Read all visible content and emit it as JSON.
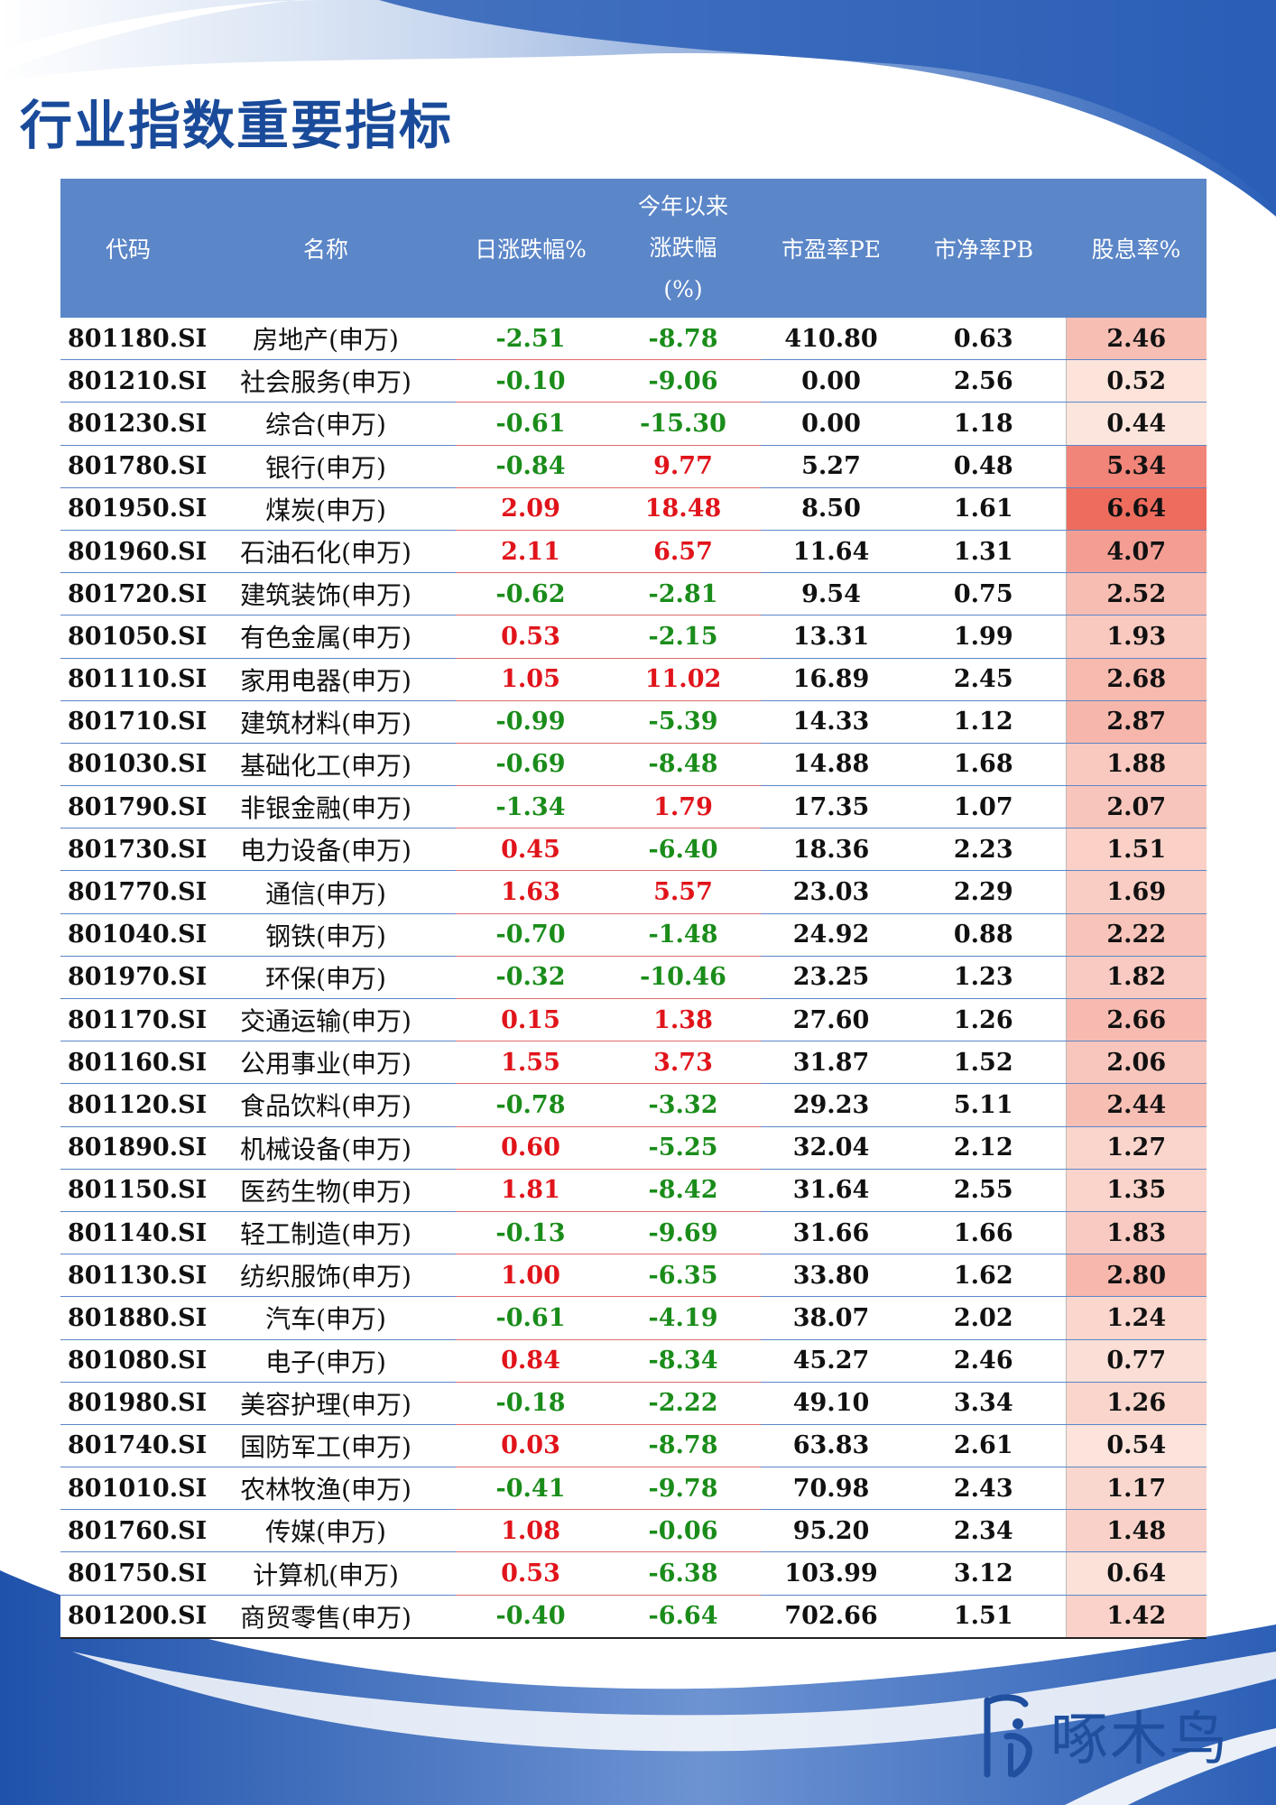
{
  "page": {
    "title": "行业指数重要指标"
  },
  "table": {
    "headers": {
      "code": "代码",
      "name": "名称",
      "day_change": "日涨跌幅%",
      "ytd_group": "今年以来",
      "ytd_label": "涨跌幅",
      "ytd_unit": "(%)",
      "pe": "市盈率PE",
      "pb": "市净率PB",
      "dividend": "股息率%"
    },
    "colors": {
      "header_bg": "#5b86c8",
      "positive": "#e0141a",
      "negative": "#1a8c1a",
      "dividend_low": "#fdeee6",
      "dividend_high": "#ee6c5e"
    },
    "rows": [
      {
        "code": "801180.SI",
        "name": "房地产(申万)",
        "day": "-2.51",
        "ytd": "-8.78",
        "pe": "410.80",
        "pb": "0.63",
        "div": "2.46"
      },
      {
        "code": "801210.SI",
        "name": "社会服务(申万)",
        "day": "-0.10",
        "ytd": "-9.06",
        "pe": "0.00",
        "pb": "2.56",
        "div": "0.52"
      },
      {
        "code": "801230.SI",
        "name": "综合(申万)",
        "day": "-0.61",
        "ytd": "-15.30",
        "pe": "0.00",
        "pb": "1.18",
        "div": "0.44"
      },
      {
        "code": "801780.SI",
        "name": "银行(申万)",
        "day": "-0.84",
        "ytd": "9.77",
        "pe": "5.27",
        "pb": "0.48",
        "div": "5.34"
      },
      {
        "code": "801950.SI",
        "name": "煤炭(申万)",
        "day": "2.09",
        "ytd": "18.48",
        "pe": "8.50",
        "pb": "1.61",
        "div": "6.64"
      },
      {
        "code": "801960.SI",
        "name": "石油石化(申万)",
        "day": "2.11",
        "ytd": "6.57",
        "pe": "11.64",
        "pb": "1.31",
        "div": "4.07"
      },
      {
        "code": "801720.SI",
        "name": "建筑装饰(申万)",
        "day": "-0.62",
        "ytd": "-2.81",
        "pe": "9.54",
        "pb": "0.75",
        "div": "2.52"
      },
      {
        "code": "801050.SI",
        "name": "有色金属(申万)",
        "day": "0.53",
        "ytd": "-2.15",
        "pe": "13.31",
        "pb": "1.99",
        "div": "1.93"
      },
      {
        "code": "801110.SI",
        "name": "家用电器(申万)",
        "day": "1.05",
        "ytd": "11.02",
        "pe": "16.89",
        "pb": "2.45",
        "div": "2.68"
      },
      {
        "code": "801710.SI",
        "name": "建筑材料(申万)",
        "day": "-0.99",
        "ytd": "-5.39",
        "pe": "14.33",
        "pb": "1.12",
        "div": "2.87"
      },
      {
        "code": "801030.SI",
        "name": "基础化工(申万)",
        "day": "-0.69",
        "ytd": "-8.48",
        "pe": "14.88",
        "pb": "1.68",
        "div": "1.88"
      },
      {
        "code": "801790.SI",
        "name": "非银金融(申万)",
        "day": "-1.34",
        "ytd": "1.79",
        "pe": "17.35",
        "pb": "1.07",
        "div": "2.07"
      },
      {
        "code": "801730.SI",
        "name": "电力设备(申万)",
        "day": "0.45",
        "ytd": "-6.40",
        "pe": "18.36",
        "pb": "2.23",
        "div": "1.51"
      },
      {
        "code": "801770.SI",
        "name": "通信(申万)",
        "day": "1.63",
        "ytd": "5.57",
        "pe": "23.03",
        "pb": "2.29",
        "div": "1.69"
      },
      {
        "code": "801040.SI",
        "name": "钢铁(申万)",
        "day": "-0.70",
        "ytd": "-1.48",
        "pe": "24.92",
        "pb": "0.88",
        "div": "2.22"
      },
      {
        "code": "801970.SI",
        "name": "环保(申万)",
        "day": "-0.32",
        "ytd": "-10.46",
        "pe": "23.25",
        "pb": "1.23",
        "div": "1.82"
      },
      {
        "code": "801170.SI",
        "name": "交通运输(申万)",
        "day": "0.15",
        "ytd": "1.38",
        "pe": "27.60",
        "pb": "1.26",
        "div": "2.66"
      },
      {
        "code": "801160.SI",
        "name": "公用事业(申万)",
        "day": "1.55",
        "ytd": "3.73",
        "pe": "31.87",
        "pb": "1.52",
        "div": "2.06"
      },
      {
        "code": "801120.SI",
        "name": "食品饮料(申万)",
        "day": "-0.78",
        "ytd": "-3.32",
        "pe": "29.23",
        "pb": "5.11",
        "div": "2.44"
      },
      {
        "code": "801890.SI",
        "name": "机械设备(申万)",
        "day": "0.60",
        "ytd": "-5.25",
        "pe": "32.04",
        "pb": "2.12",
        "div": "1.27"
      },
      {
        "code": "801150.SI",
        "name": "医药生物(申万)",
        "day": "1.81",
        "ytd": "-8.42",
        "pe": "31.64",
        "pb": "2.55",
        "div": "1.35"
      },
      {
        "code": "801140.SI",
        "name": "轻工制造(申万)",
        "day": "-0.13",
        "ytd": "-9.69",
        "pe": "31.66",
        "pb": "1.66",
        "div": "1.83"
      },
      {
        "code": "801130.SI",
        "name": "纺织服饰(申万)",
        "day": "1.00",
        "ytd": "-6.35",
        "pe": "33.80",
        "pb": "1.62",
        "div": "2.80"
      },
      {
        "code": "801880.SI",
        "name": "汽车(申万)",
        "day": "-0.61",
        "ytd": "-4.19",
        "pe": "38.07",
        "pb": "2.02",
        "div": "1.24"
      },
      {
        "code": "801080.SI",
        "name": "电子(申万)",
        "day": "0.84",
        "ytd": "-8.34",
        "pe": "45.27",
        "pb": "2.46",
        "div": "0.77"
      },
      {
        "code": "801980.SI",
        "name": "美容护理(申万)",
        "day": "-0.18",
        "ytd": "-2.22",
        "pe": "49.10",
        "pb": "3.34",
        "div": "1.26"
      },
      {
        "code": "801740.SI",
        "name": "国防军工(申万)",
        "day": "0.03",
        "ytd": "-8.78",
        "pe": "63.83",
        "pb": "2.61",
        "div": "0.54"
      },
      {
        "code": "801010.SI",
        "name": "农林牧渔(申万)",
        "day": "-0.41",
        "ytd": "-9.78",
        "pe": "70.98",
        "pb": "2.43",
        "div": "1.17"
      },
      {
        "code": "801760.SI",
        "name": "传媒(申万)",
        "day": "1.08",
        "ytd": "-0.06",
        "pe": "95.20",
        "pb": "2.34",
        "div": "1.48"
      },
      {
        "code": "801750.SI",
        "name": "计算机(申万)",
        "day": "0.53",
        "ytd": "-6.38",
        "pe": "103.99",
        "pb": "3.12",
        "div": "0.64"
      },
      {
        "code": "801200.SI",
        "name": "商贸零售(申万)",
        "day": "-0.40",
        "ytd": "-6.64",
        "pe": "702.66",
        "pb": "1.51",
        "div": "1.42"
      }
    ]
  },
  "logo": {
    "text": "啄木鸟",
    "mark_icon": "woodpecker-logo-icon"
  }
}
